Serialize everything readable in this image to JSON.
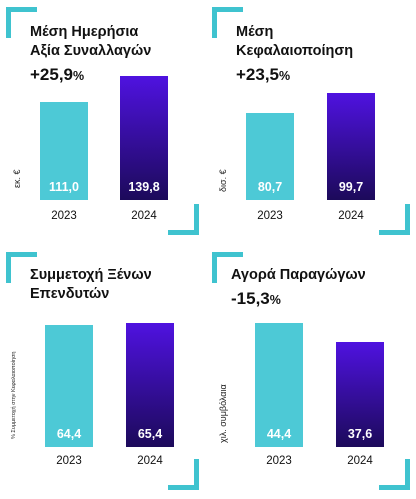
{
  "colors": {
    "accent": "#3fc3cf",
    "bar_2023": "#4dc9d6",
    "bar_2024_top": "#4f12e0",
    "bar_2024_bottom": "#1c0a5a"
  },
  "chart_data": [
    {
      "type": "bar",
      "title": "Μέση Ημερήσια\nΑξία Συναλλαγών",
      "change_value": "+25,9",
      "change_unit": "%",
      "ylabel": "εκ. €",
      "categories": [
        "2023",
        "2024"
      ],
      "values": [
        111.0,
        139.8
      ],
      "value_labels": [
        "111,0",
        "139,8"
      ]
    },
    {
      "type": "bar",
      "title": "Μέση\nΚεφαλαιοποίηση",
      "change_value": "+23,5",
      "change_unit": "%",
      "ylabel": "δισ. €",
      "categories": [
        "2023",
        "2024"
      ],
      "values": [
        80.7,
        99.7
      ],
      "value_labels": [
        "80,7",
        "99,7"
      ]
    },
    {
      "type": "bar",
      "title": "Συμμετοχή Ξένων\nΕπενδυτών",
      "change_value": "",
      "change_unit": "",
      "ylabel": "% Συμμετοχή στην Κεφαλαιοποίηση",
      "categories": [
        "2023",
        "2024"
      ],
      "values": [
        64.4,
        65.4
      ],
      "value_labels": [
        "64,4",
        "65,4"
      ]
    },
    {
      "type": "bar",
      "title": "Αγορά Παραγώγων",
      "change_value": "-15,3",
      "change_unit": "%",
      "ylabel": "χιλ. συμβόλαια",
      "categories": [
        "2023",
        "2024"
      ],
      "values": [
        44.4,
        37.6
      ],
      "value_labels": [
        "44,4",
        "37,6"
      ]
    }
  ]
}
